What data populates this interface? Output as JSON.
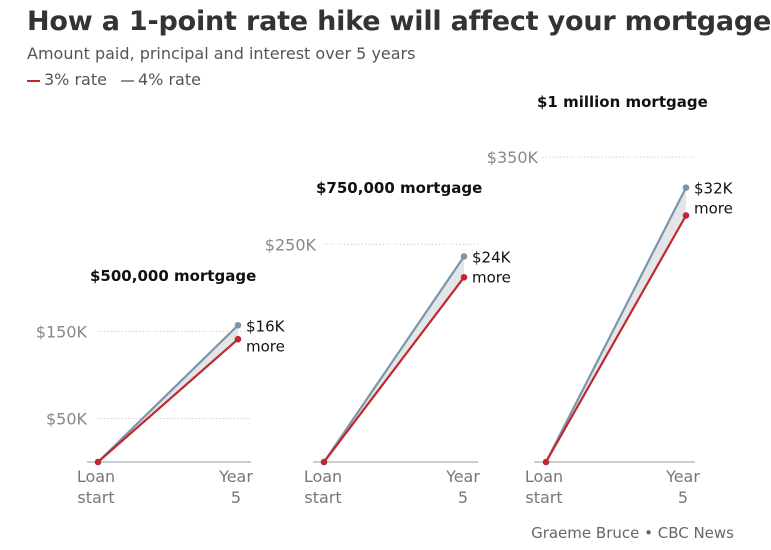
{
  "title": "How a 1-point rate hike will affect your mortgage",
  "subtitle": "Amount paid, principal and interest over 5 years",
  "credit": "Graeme Bruce • CBC News",
  "legend": [
    {
      "label": "3% rate",
      "color": "#c0282d"
    },
    {
      "label": "4% rate",
      "color": "#7a96ab"
    }
  ],
  "colors": {
    "rate3": "#c0282d",
    "rate4": "#7a96ab",
    "band": "#e3e5e8",
    "grid": "#cfcfcf",
    "axis": "#999999"
  },
  "chart_data": [
    {
      "type": "line",
      "title": "$500,000 mortgage",
      "x": [
        "Loan start",
        "Year 5"
      ],
      "series": [
        {
          "name": "3% rate",
          "values": [
            0,
            141000
          ]
        },
        {
          "name": "4% rate",
          "values": [
            0,
            157000
          ]
        }
      ],
      "y_ticks": [
        {
          "value": 50000,
          "label": "$50K"
        },
        {
          "value": 150000,
          "label": "$150K"
        }
      ],
      "annotation": [
        "$16K",
        "more"
      ]
    },
    {
      "type": "line",
      "title": "$750,000 mortgage",
      "x": [
        "Loan start",
        "Year 5"
      ],
      "series": [
        {
          "name": "3% rate",
          "values": [
            0,
            212000
          ]
        },
        {
          "name": "4% rate",
          "values": [
            0,
            236000
          ]
        }
      ],
      "y_ticks": [
        {
          "value": 250000,
          "label": "$250K"
        }
      ],
      "annotation": [
        "$24K",
        "more"
      ]
    },
    {
      "type": "line",
      "title": "$1 million mortgage",
      "x": [
        "Loan start",
        "Year 5"
      ],
      "series": [
        {
          "name": "3% rate",
          "values": [
            0,
            283000
          ]
        },
        {
          "name": "4% rate",
          "values": [
            0,
            315000
          ]
        }
      ],
      "y_ticks": [
        {
          "value": 350000,
          "label": "$350K"
        }
      ],
      "annotation": [
        "$32K",
        "more"
      ]
    }
  ]
}
